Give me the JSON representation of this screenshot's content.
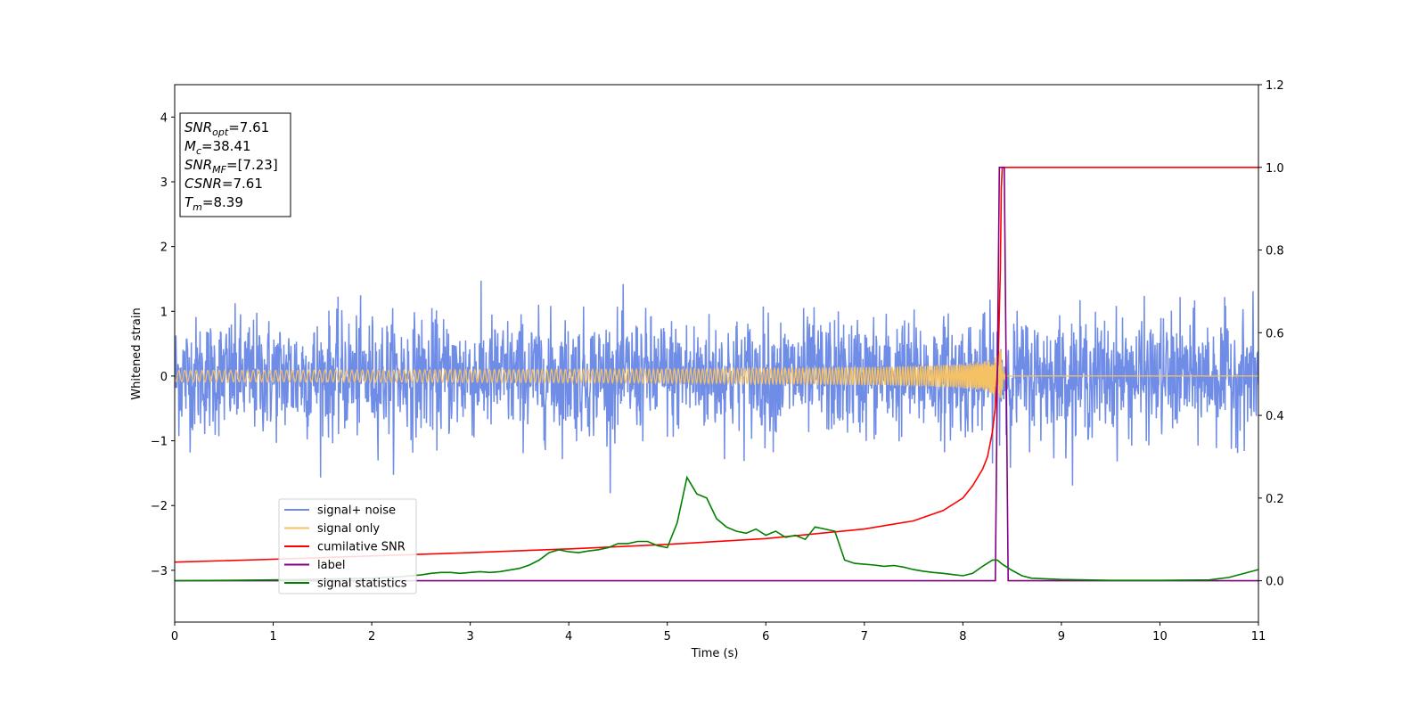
{
  "chart_data": {
    "type": "line",
    "xlabel": "Time (s)",
    "ylabel": "Whitened strain",
    "xlim": [
      0,
      11
    ],
    "ylim": [
      -3.8,
      4.5
    ],
    "y2lim": [
      -0.1,
      1.2
    ],
    "xticks": [
      0,
      1,
      2,
      3,
      4,
      5,
      6,
      7,
      8,
      9,
      10,
      11
    ],
    "yticks": [
      -3,
      -2,
      -1,
      0,
      1,
      2,
      3,
      4
    ],
    "y2ticks": [
      0.0,
      0.2,
      0.4,
      0.6,
      0.8,
      1.0,
      1.2
    ],
    "legend_position": "lower-left",
    "grid": false,
    "info_box": {
      "lines": [
        {
          "sym": "SNR",
          "sub": "opt",
          "val": "=7.61"
        },
        {
          "sym": "M",
          "sub": "c",
          "val": "=38.41"
        },
        {
          "sym": "SNR",
          "sub": "MF",
          "val": "=[7.23]"
        },
        {
          "sym": "CSNR",
          "sub": "",
          "val": "=7.61"
        },
        {
          "sym": "T",
          "sub": "m",
          "val": "=8.39"
        }
      ]
    },
    "series": [
      {
        "name": "signal+ noise",
        "color": "#6f8ce6",
        "axis": "left",
        "kind": "noise",
        "amplitude_sd": 0.45,
        "range": [
          -1.9,
          1.9
        ]
      },
      {
        "name": "signal only",
        "color": "#f5c165",
        "axis": "left",
        "kind": "chirp",
        "merger_time": 8.39,
        "peak_amplitude": 0.4
      },
      {
        "name": "cumilative SNR",
        "color": "#ff0000",
        "axis": "right",
        "x": [
          0,
          1,
          2,
          3,
          4,
          5,
          6,
          7,
          7.5,
          7.8,
          8.0,
          8.1,
          8.2,
          8.25,
          8.3,
          8.33,
          8.36,
          8.38,
          8.39,
          8.4,
          8.45,
          11
        ],
        "y": [
          0.045,
          0.052,
          0.06,
          0.068,
          0.077,
          0.088,
          0.102,
          0.125,
          0.145,
          0.17,
          0.2,
          0.23,
          0.27,
          0.3,
          0.36,
          0.42,
          0.55,
          0.75,
          0.95,
          1.0,
          1.0,
          1.0
        ]
      },
      {
        "name": "label",
        "color": "#800080",
        "axis": "right",
        "x": [
          0,
          8.33,
          8.37,
          8.42,
          8.46,
          11
        ],
        "y": [
          0,
          0,
          1.0,
          1.0,
          0,
          0
        ]
      },
      {
        "name": "signal statistics",
        "color": "#008000",
        "axis": "right",
        "x": [
          0,
          0.5,
          1,
          1.5,
          2,
          2.3,
          2.5,
          2.6,
          2.7,
          2.8,
          2.9,
          3,
          3.1,
          3.2,
          3.3,
          3.4,
          3.5,
          3.6,
          3.7,
          3.8,
          3.9,
          4,
          4.1,
          4.2,
          4.3,
          4.4,
          4.5,
          4.6,
          4.7,
          4.8,
          4.9,
          5.0,
          5.1,
          5.2,
          5.3,
          5.4,
          5.5,
          5.6,
          5.7,
          5.8,
          5.9,
          6.0,
          6.1,
          6.2,
          6.3,
          6.4,
          6.5,
          6.6,
          6.7,
          6.8,
          6.9,
          7.0,
          7.1,
          7.2,
          7.3,
          7.4,
          7.5,
          7.6,
          7.7,
          7.8,
          7.9,
          8.0,
          8.1,
          8.2,
          8.3,
          8.35,
          8.4,
          8.5,
          8.6,
          8.7,
          9.0,
          9.5,
          10.0,
          10.5,
          10.7,
          11
        ],
        "y": [
          0.0,
          0.001,
          0.002,
          0.004,
          0.006,
          0.01,
          0.014,
          0.018,
          0.02,
          0.02,
          0.018,
          0.02,
          0.022,
          0.02,
          0.022,
          0.026,
          0.03,
          0.038,
          0.05,
          0.068,
          0.075,
          0.07,
          0.068,
          0.072,
          0.075,
          0.08,
          0.09,
          0.09,
          0.095,
          0.095,
          0.085,
          0.08,
          0.14,
          0.25,
          0.21,
          0.2,
          0.15,
          0.13,
          0.12,
          0.115,
          0.125,
          0.11,
          0.12,
          0.105,
          0.11,
          0.1,
          0.13,
          0.125,
          0.12,
          0.05,
          0.042,
          0.04,
          0.038,
          0.035,
          0.037,
          0.033,
          0.027,
          0.023,
          0.02,
          0.018,
          0.015,
          0.012,
          0.018,
          0.035,
          0.05,
          0.05,
          0.04,
          0.025,
          0.012,
          0.006,
          0.003,
          0.001,
          0.001,
          0.002,
          0.008,
          0.027
        ]
      }
    ]
  }
}
